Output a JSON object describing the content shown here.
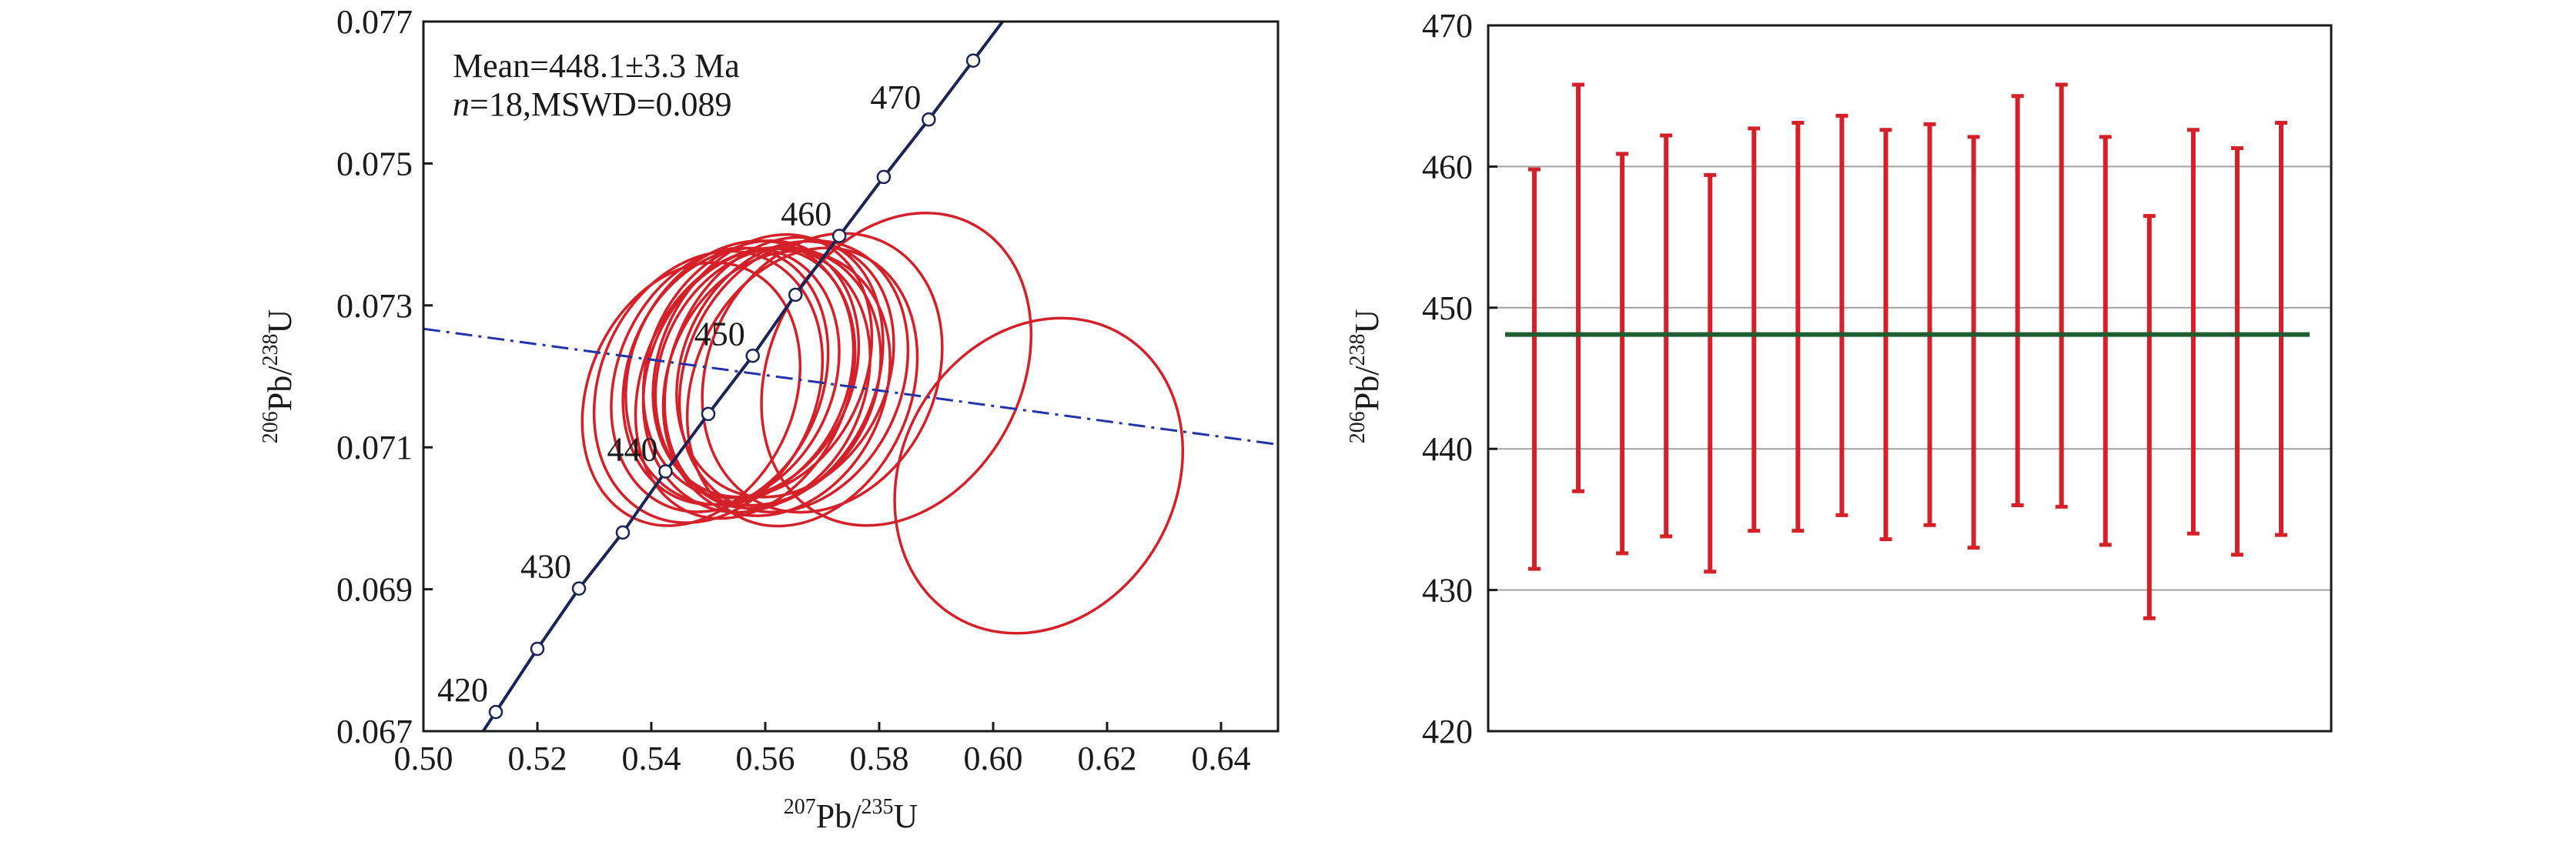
{
  "chart_data": [
    {
      "type": "concordia",
      "annotation": {
        "mean": "Mean=448.1±3.3 Ma",
        "n_italic": "n",
        "stats": "=18,MSWD=0.089"
      },
      "xlabel": {
        "sup": "207",
        "main": "Pb/",
        "sup2": "235",
        "tail": "U"
      },
      "ylabel": {
        "sup": "206",
        "main": "Pb/",
        "sup2": "238",
        "tail": "U"
      },
      "xlim": [
        0.5,
        0.65
      ],
      "ylim": [
        0.067,
        0.077
      ],
      "xticks": [
        "0.50",
        "0.52",
        "0.54",
        "0.56",
        "0.58",
        "0.60",
        "0.62",
        "0.64"
      ],
      "yticks": [
        "0.067",
        "0.069",
        "0.071",
        "0.073",
        "0.075",
        "0.077"
      ],
      "concordia_points": [
        {
          "x": 0.5127,
          "y": 0.06727,
          "age": 420,
          "label": "420"
        },
        {
          "x": 0.52,
          "y": 0.06816,
          "age": 425,
          "label": ""
        },
        {
          "x": 0.5273,
          "y": 0.06901,
          "age": 430,
          "label": "430"
        },
        {
          "x": 0.535,
          "y": 0.0698,
          "age": 435,
          "label": ""
        },
        {
          "x": 0.5425,
          "y": 0.07066,
          "age": 440,
          "label": "440"
        },
        {
          "x": 0.55,
          "y": 0.07147,
          "age": 445,
          "label": ""
        },
        {
          "x": 0.5578,
          "y": 0.07229,
          "age": 450,
          "label": "450"
        },
        {
          "x": 0.5653,
          "y": 0.07315,
          "age": 455,
          "label": ""
        },
        {
          "x": 0.573,
          "y": 0.07398,
          "age": 460,
          "label": "460"
        },
        {
          "x": 0.5808,
          "y": 0.07481,
          "age": 465,
          "label": ""
        },
        {
          "x": 0.5887,
          "y": 0.07562,
          "age": 470,
          "label": "470"
        },
        {
          "x": 0.5965,
          "y": 0.07645,
          "age": 475,
          "label": ""
        }
      ],
      "discordia_line": {
        "x1": 0.5,
        "y1": 0.07267,
        "x2": 0.65,
        "y2": 0.07104
      },
      "ellipses": [
        {
          "cx": 0.547,
          "cy": 0.07175,
          "rx": 0.018,
          "ry": 0.0035,
          "rot": 66
        },
        {
          "cx": 0.55,
          "cy": 0.07185,
          "rx": 0.019,
          "ry": 0.0036,
          "rot": 66
        },
        {
          "cx": 0.552,
          "cy": 0.07195,
          "rx": 0.018,
          "ry": 0.0035,
          "rot": 67
        },
        {
          "cx": 0.554,
          "cy": 0.072,
          "rx": 0.018,
          "ry": 0.0034,
          "rot": 66
        },
        {
          "cx": 0.5555,
          "cy": 0.07205,
          "rx": 0.019,
          "ry": 0.0035,
          "rot": 65
        },
        {
          "cx": 0.5565,
          "cy": 0.0719,
          "rx": 0.018,
          "ry": 0.0036,
          "rot": 66
        },
        {
          "cx": 0.5575,
          "cy": 0.0721,
          "rx": 0.018,
          "ry": 0.0034,
          "rot": 67
        },
        {
          "cx": 0.5585,
          "cy": 0.07195,
          "rx": 0.019,
          "ry": 0.0035,
          "rot": 66
        },
        {
          "cx": 0.5595,
          "cy": 0.07215,
          "rx": 0.018,
          "ry": 0.0035,
          "rot": 65
        },
        {
          "cx": 0.5605,
          "cy": 0.072,
          "rx": 0.019,
          "ry": 0.0034,
          "rot": 66
        },
        {
          "cx": 0.5615,
          "cy": 0.07205,
          "rx": 0.018,
          "ry": 0.0036,
          "rot": 67
        },
        {
          "cx": 0.562,
          "cy": 0.0719,
          "rx": 0.019,
          "ry": 0.0035,
          "rot": 66
        },
        {
          "cx": 0.5635,
          "cy": 0.0721,
          "rx": 0.018,
          "ry": 0.0034,
          "rot": 65
        },
        {
          "cx": 0.565,
          "cy": 0.072,
          "rx": 0.019,
          "ry": 0.0036,
          "rot": 66
        },
        {
          "cx": 0.5665,
          "cy": 0.07185,
          "rx": 0.019,
          "ry": 0.0037,
          "rot": 66
        },
        {
          "cx": 0.57,
          "cy": 0.07205,
          "rx": 0.02,
          "ry": 0.0037,
          "rot": 65
        },
        {
          "cx": 0.583,
          "cy": 0.0721,
          "rx": 0.022,
          "ry": 0.0042,
          "rot": 62
        },
        {
          "cx": 0.608,
          "cy": 0.0706,
          "rx": 0.024,
          "ry": 0.0042,
          "rot": 60
        }
      ]
    },
    {
      "type": "errorbar",
      "ylabel": {
        "sup": "206",
        "main": "Pb/",
        "sup2": "238",
        "tail": "U"
      },
      "ylim": [
        420,
        470
      ],
      "yticks": [
        "470",
        "460",
        "450",
        "440",
        "430",
        "420"
      ],
      "grid": true,
      "mean": 448.1,
      "colors": {
        "bars": "#d42028",
        "mean": "#1e5e2e",
        "grid": "#a0a0a0"
      },
      "bars": [
        {
          "low": 431.5,
          "high": 459.8
        },
        {
          "low": 437.0,
          "high": 465.8
        },
        {
          "low": 432.6,
          "high": 460.9
        },
        {
          "low": 433.8,
          "high": 462.2
        },
        {
          "low": 431.3,
          "high": 459.4
        },
        {
          "low": 434.2,
          "high": 462.7
        },
        {
          "low": 434.2,
          "high": 463.1
        },
        {
          "low": 435.3,
          "high": 463.6
        },
        {
          "low": 433.6,
          "high": 462.6
        },
        {
          "low": 434.6,
          "high": 463.0
        },
        {
          "low": 433.0,
          "high": 462.1
        },
        {
          "low": 436.0,
          "high": 465.0
        },
        {
          "low": 435.9,
          "high": 465.8
        },
        {
          "low": 433.2,
          "high": 462.1
        },
        {
          "low": 428.0,
          "high": 456.5
        },
        {
          "low": 434.0,
          "high": 462.6
        },
        {
          "low": 432.5,
          "high": 461.3
        },
        {
          "low": 433.9,
          "high": 463.1
        }
      ]
    }
  ]
}
